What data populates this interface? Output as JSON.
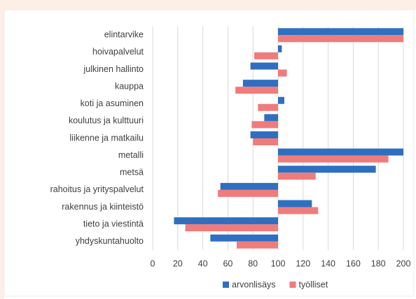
{
  "chart_data": {
    "type": "hbar",
    "categories": [
      "elintarvike",
      "hoivapalvelut",
      "julkinen hallinto",
      "kauppa",
      "koti ja asuminen",
      "koulutus ja kulttuuri",
      "liikenne ja matkailu",
      "metalli",
      "metsä",
      "rahoitus ja yrityspalvelut",
      "rakennus ja kiinteistö",
      "tieto ja viestintä",
      "yhdyskuntahuolto"
    ],
    "series": [
      {
        "name": "arvonlisäys",
        "color": "#2f6fc1",
        "values": [
          200,
          103,
          78,
          72,
          105,
          89,
          78,
          200,
          178,
          54,
          127,
          17,
          46
        ]
      },
      {
        "name": "työlliset",
        "color": "#f07b7b",
        "values": [
          200,
          81,
          107,
          66,
          84,
          79,
          80,
          188,
          130,
          52,
          132,
          26,
          67
        ]
      }
    ],
    "xlim": [
      0,
      200
    ],
    "xticks": [
      0,
      20,
      40,
      60,
      80,
      100,
      120,
      140,
      160,
      180,
      200
    ],
    "baseline": 100,
    "grid": true,
    "legend": "bottom"
  }
}
